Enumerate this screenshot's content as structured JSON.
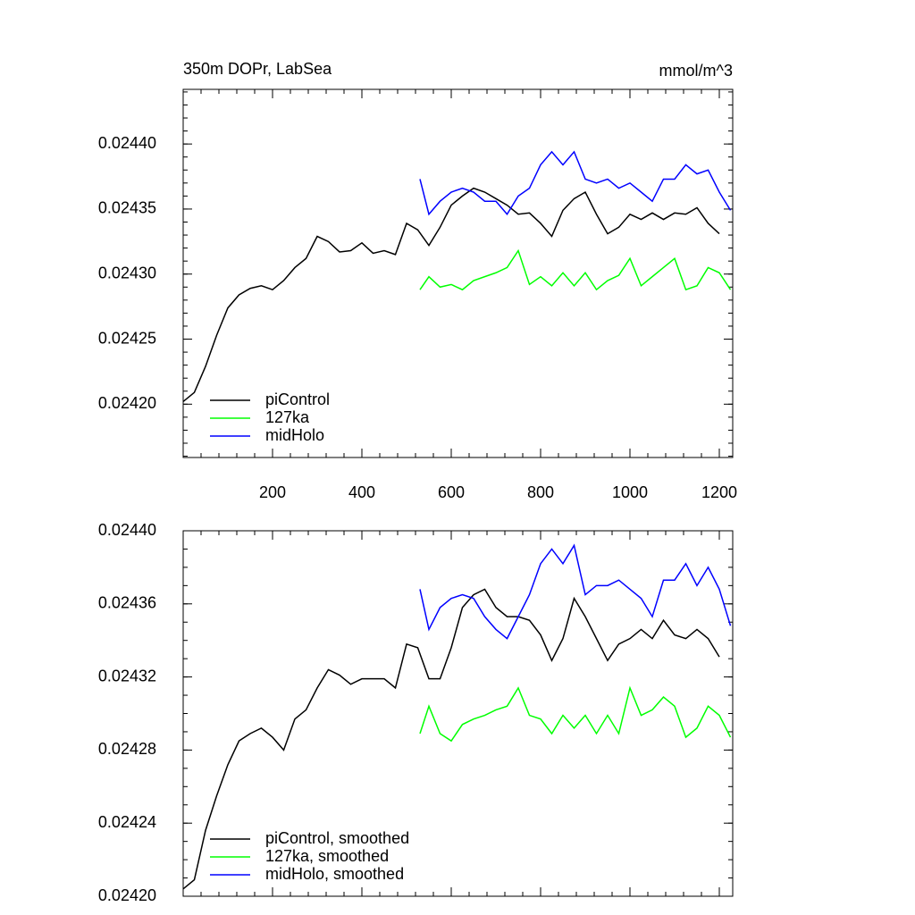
{
  "chart_data": [
    {
      "type": "line",
      "title": "350m DOPr, LabSea",
      "subtitle": "mmol/m^3",
      "xlim": [
        0,
        1230
      ],
      "xticks": [
        200,
        400,
        600,
        800,
        1000,
        1200
      ],
      "ylim": [
        0.024159,
        0.024442
      ],
      "yticks": [
        {
          "value": 0.0242,
          "label": "0.02420"
        },
        0.02425,
        {
          "value": 0.0243,
          "label": "0.02430"
        },
        0.02435,
        {
          "value": 0.0244,
          "label": "0.02440"
        }
      ],
      "legend": "lower left",
      "series": [
        {
          "name": "piControl",
          "color": "#000000",
          "x": [
            0,
            25,
            50,
            75,
            100,
            125,
            150,
            175,
            200,
            225,
            250,
            275,
            300,
            325,
            350,
            375,
            400,
            425,
            450,
            475,
            500,
            525,
            550,
            575,
            600,
            625,
            650,
            675,
            700,
            725,
            750,
            775,
            800,
            825,
            850,
            875,
            900,
            925,
            950,
            975,
            1000,
            1025,
            1050,
            1075,
            1100,
            1125,
            1150,
            1175,
            1200
          ],
          "values": [
            0.024202,
            0.024209,
            0.024229,
            0.024253,
            0.024274,
            0.024284,
            0.024289,
            0.024291,
            0.024288,
            0.024295,
            0.024305,
            0.024312,
            0.024329,
            0.024325,
            0.024317,
            0.024318,
            0.024324,
            0.024316,
            0.024318,
            0.024315,
            0.024339,
            0.024334,
            0.024322,
            0.024336,
            0.024353,
            0.02436,
            0.024366,
            0.024363,
            0.024358,
            0.024353,
            0.024346,
            0.024347,
            0.024339,
            0.024329,
            0.024349,
            0.024358,
            0.024363,
            0.024346,
            0.024331,
            0.024336,
            0.024346,
            0.024342,
            0.024347,
            0.024342,
            0.024347,
            0.024346,
            0.024351,
            0.024339,
            0.024331
          ]
        },
        {
          "name": "127ka",
          "color": "#00ff00",
          "x": [
            530,
            550,
            575,
            600,
            625,
            650,
            675,
            700,
            725,
            750,
            775,
            800,
            825,
            850,
            875,
            900,
            925,
            950,
            975,
            1000,
            1025,
            1050,
            1075,
            1100,
            1125,
            1150,
            1175,
            1200,
            1225
          ],
          "values": [
            0.024288,
            0.024298,
            0.02429,
            0.024292,
            0.024288,
            0.024295,
            0.024298,
            0.024301,
            0.024305,
            0.024318,
            0.024292,
            0.024298,
            0.024291,
            0.024301,
            0.024291,
            0.024301,
            0.024288,
            0.024295,
            0.024299,
            0.024312,
            0.024291,
            0.024298,
            0.024305,
            0.024312,
            0.024288,
            0.024291,
            0.024305,
            0.024301,
            0.024288
          ]
        },
        {
          "name": "midHolo",
          "color": "#0000ff",
          "x": [
            530,
            550,
            575,
            600,
            625,
            650,
            675,
            700,
            725,
            750,
            775,
            800,
            825,
            850,
            875,
            900,
            925,
            950,
            975,
            1000,
            1025,
            1050,
            1075,
            1100,
            1125,
            1150,
            1175,
            1200,
            1225
          ],
          "values": [
            0.024373,
            0.024346,
            0.024356,
            0.024363,
            0.024366,
            0.024363,
            0.024356,
            0.024356,
            0.024346,
            0.02436,
            0.024366,
            0.024384,
            0.024394,
            0.024384,
            0.024394,
            0.024373,
            0.02437,
            0.024373,
            0.024366,
            0.02437,
            0.024363,
            0.024356,
            0.024373,
            0.024373,
            0.024384,
            0.024377,
            0.02438,
            0.024363,
            0.024349
          ]
        }
      ]
    },
    {
      "type": "line",
      "xlim": [
        0,
        1230
      ],
      "xticks": [
        200,
        400,
        600,
        800,
        1000,
        1200
      ],
      "xtick_labels": false,
      "ylim": [
        0.0242,
        0.0244
      ],
      "yticks": [
        {
          "value": 0.0242,
          "label": "0.02420"
        },
        0.02424,
        0.02428,
        0.02432,
        0.02436,
        {
          "value": 0.0244,
          "label": "0.02440"
        }
      ],
      "legend": "lower left",
      "series": [
        {
          "name": "piControl, smoothed",
          "color": "#000000",
          "x": [
            0,
            25,
            50,
            75,
            100,
            125,
            150,
            175,
            200,
            225,
            250,
            275,
            300,
            325,
            350,
            375,
            400,
            425,
            450,
            475,
            500,
            525,
            550,
            575,
            600,
            625,
            650,
            675,
            700,
            725,
            750,
            775,
            800,
            825,
            850,
            875,
            900,
            925,
            950,
            975,
            1000,
            1025,
            1050,
            1075,
            1100,
            1125,
            1150,
            1175,
            1200
          ],
          "values": [
            0.024204,
            0.024209,
            0.024236,
            0.024255,
            0.024272,
            0.024285,
            0.024289,
            0.024292,
            0.024287,
            0.02428,
            0.024297,
            0.024302,
            0.024314,
            0.024324,
            0.024321,
            0.024316,
            0.024319,
            0.024319,
            0.024319,
            0.024314,
            0.024338,
            0.024336,
            0.024319,
            0.024319,
            0.024336,
            0.024358,
            0.024365,
            0.024368,
            0.024358,
            0.024353,
            0.024353,
            0.024351,
            0.024343,
            0.024329,
            0.024341,
            0.024363,
            0.024353,
            0.024341,
            0.024329,
            0.024338,
            0.024341,
            0.024346,
            0.024341,
            0.024351,
            0.024343,
            0.024341,
            0.024346,
            0.024341,
            0.024331
          ]
        },
        {
          "name": "127ka, smoothed",
          "color": "#00ff00",
          "x": [
            530,
            550,
            575,
            600,
            625,
            650,
            675,
            700,
            725,
            750,
            775,
            800,
            825,
            850,
            875,
            900,
            925,
            950,
            975,
            1000,
            1025,
            1050,
            1075,
            1100,
            1125,
            1150,
            1175,
            1200,
            1225
          ],
          "values": [
            0.024289,
            0.024304,
            0.024289,
            0.024285,
            0.024294,
            0.024297,
            0.024299,
            0.024302,
            0.024304,
            0.024314,
            0.024299,
            0.024297,
            0.024289,
            0.024299,
            0.024292,
            0.024299,
            0.024289,
            0.024299,
            0.024289,
            0.024314,
            0.024299,
            0.024302,
            0.024309,
            0.024304,
            0.024287,
            0.024292,
            0.024304,
            0.024299,
            0.024287
          ]
        },
        {
          "name": "midHolo, smoothed",
          "color": "#0000ff",
          "x": [
            530,
            550,
            575,
            600,
            625,
            650,
            675,
            700,
            725,
            750,
            775,
            800,
            825,
            850,
            875,
            900,
            925,
            950,
            975,
            1000,
            1025,
            1050,
            1075,
            1100,
            1125,
            1150,
            1175,
            1200,
            1225
          ],
          "values": [
            0.024368,
            0.024346,
            0.024358,
            0.024363,
            0.024365,
            0.024363,
            0.024353,
            0.024346,
            0.024341,
            0.024353,
            0.024365,
            0.024382,
            0.02439,
            0.024382,
            0.024392,
            0.024365,
            0.02437,
            0.02437,
            0.024373,
            0.024368,
            0.024363,
            0.024353,
            0.024373,
            0.024373,
            0.024382,
            0.02437,
            0.02438,
            0.024368,
            0.024348
          ]
        }
      ]
    }
  ]
}
